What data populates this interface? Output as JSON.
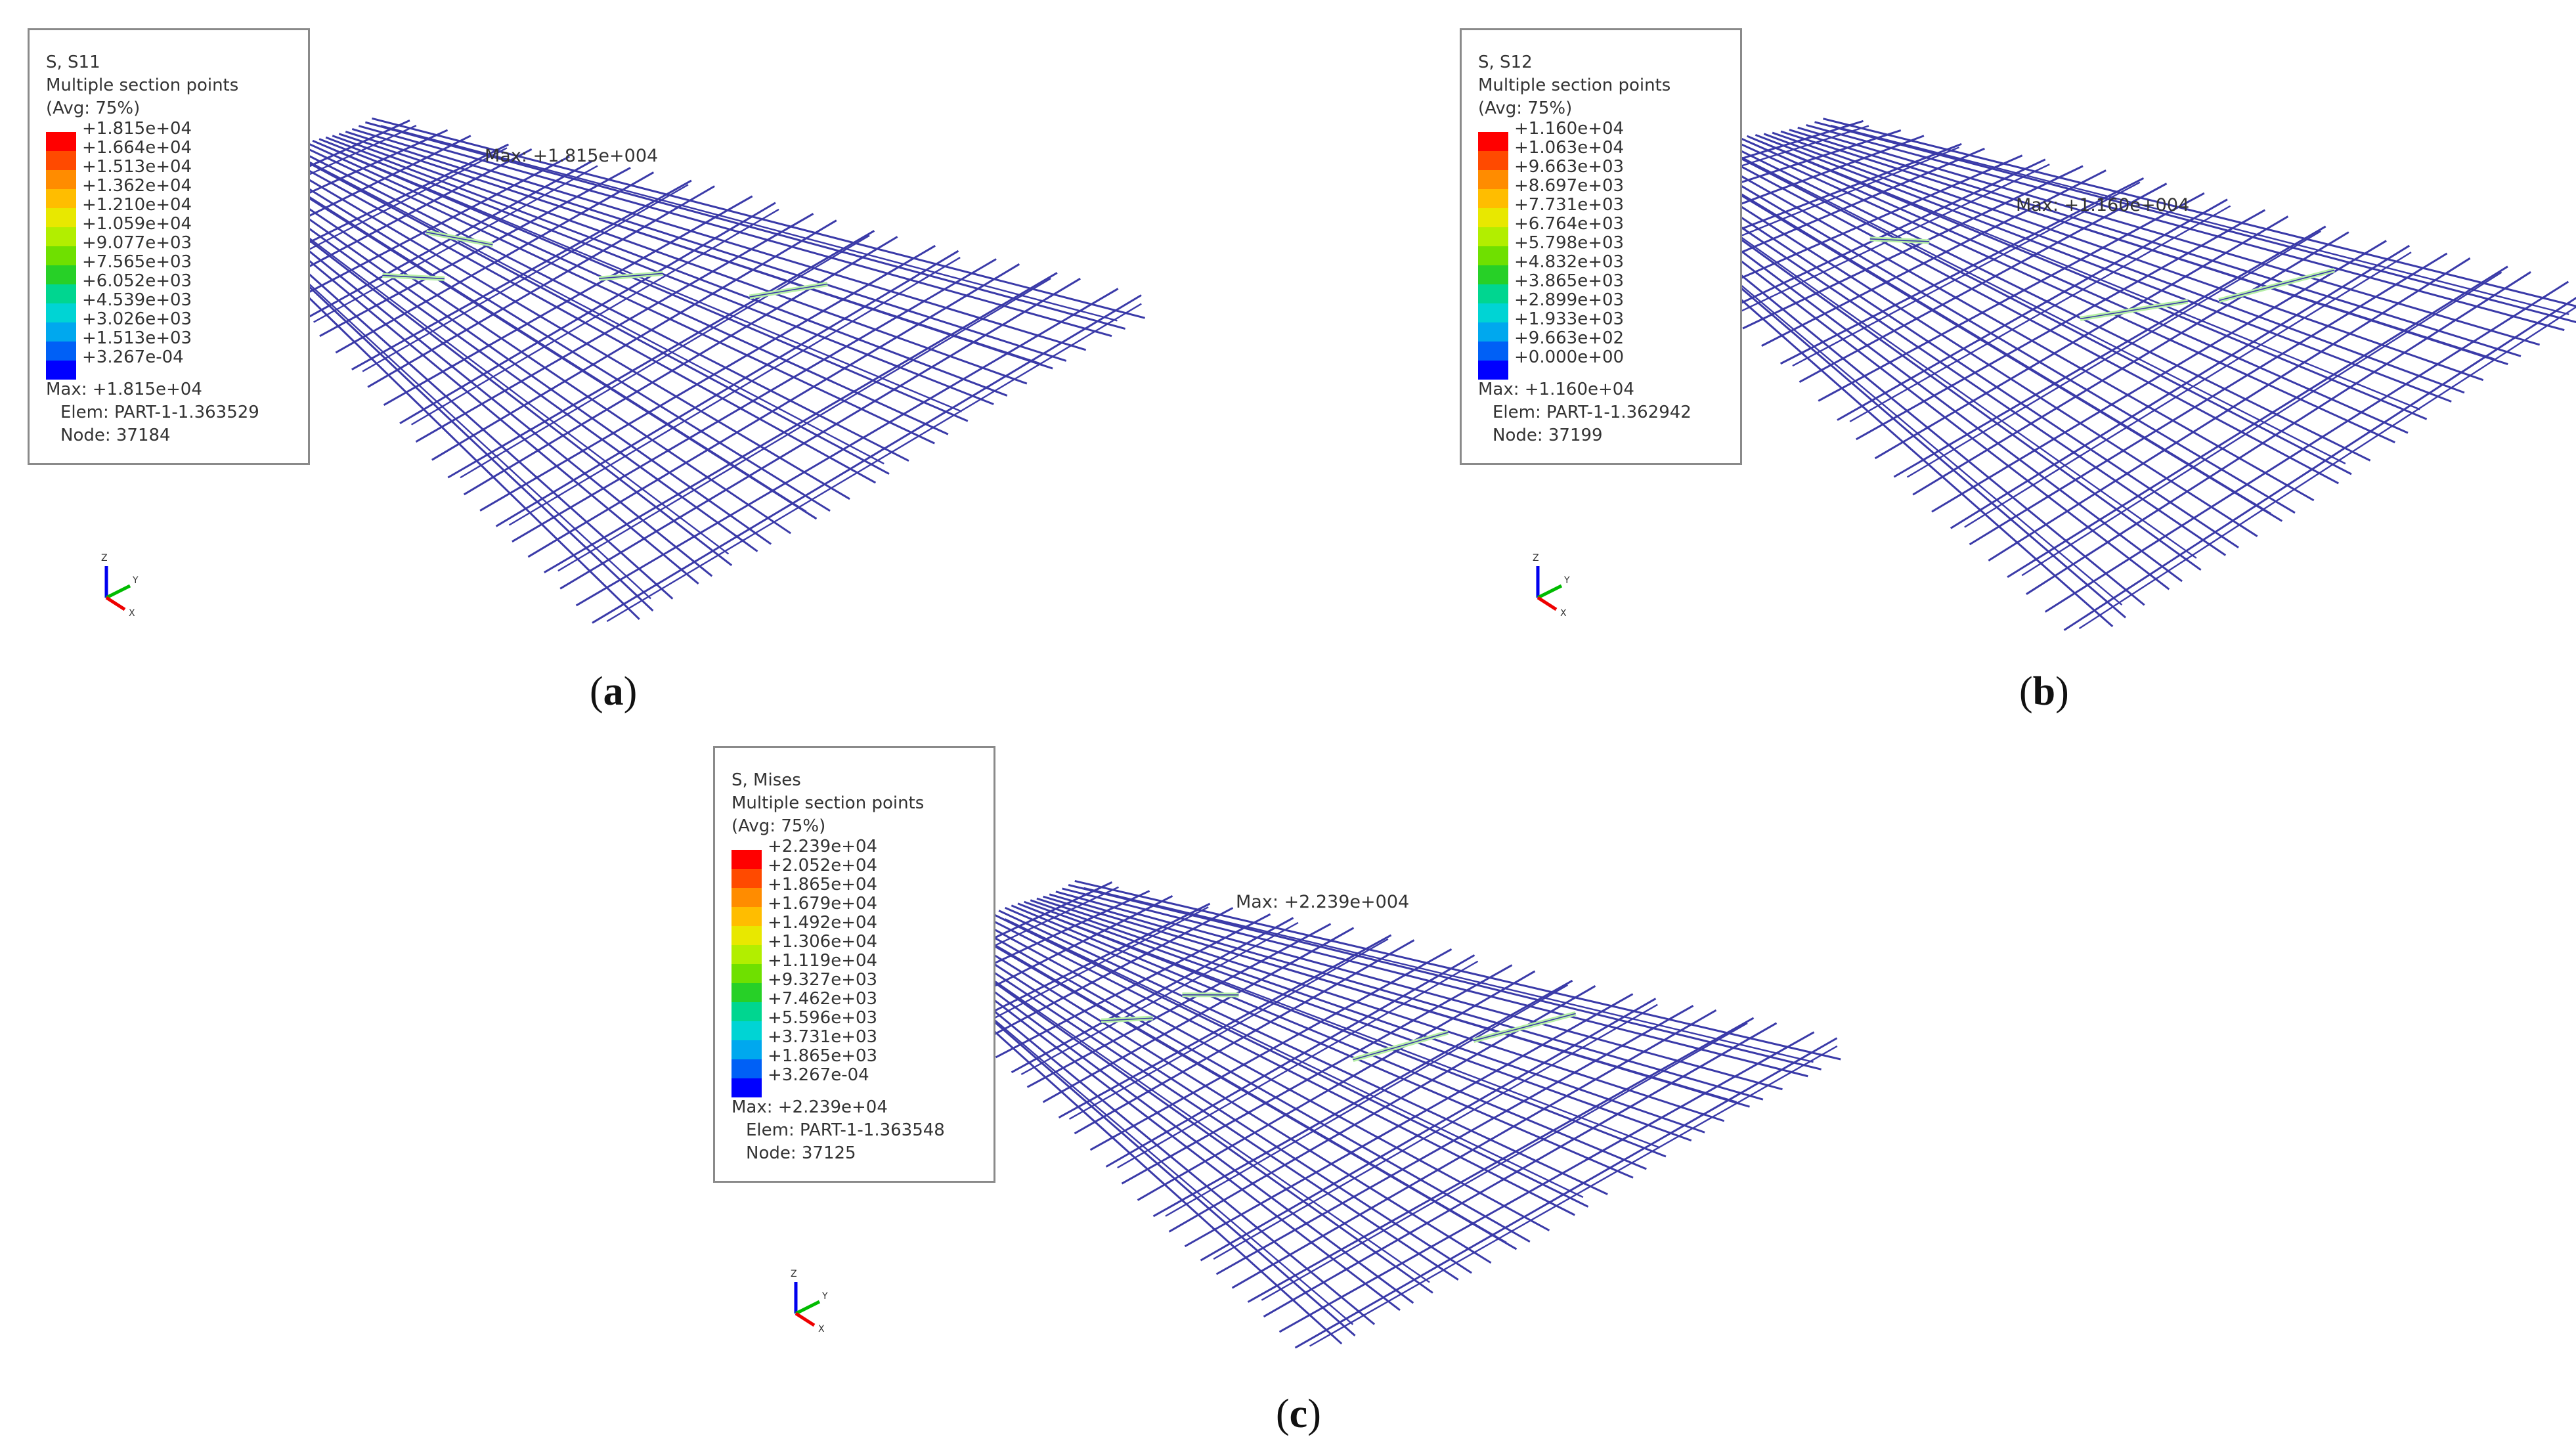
{
  "panels": [
    {
      "caption": "(a)",
      "caption_letter": "a",
      "legend": {
        "title": "S, S11",
        "subtitle": "Multiple section points",
        "avg": "(Avg: 75%)",
        "values": [
          "+1.815e+04",
          "+1.664e+04",
          "+1.513e+04",
          "+1.362e+04",
          "+1.210e+04",
          "+1.059e+04",
          "+9.077e+03",
          "+7.565e+03",
          "+6.052e+03",
          "+4.539e+03",
          "+3.026e+03",
          "+1.513e+03",
          "+3.267e-04"
        ],
        "max": "Max: +1.815e+04",
        "elem": "Elem: PART-1-1.363529",
        "node": "Node: 37184"
      },
      "max_label": "Max: +1.815e+004"
    },
    {
      "caption": "(b)",
      "caption_letter": "b",
      "legend": {
        "title": "S, S12",
        "subtitle": "Multiple section points",
        "avg": "(Avg: 75%)",
        "values": [
          "+1.160e+04",
          "+1.063e+04",
          "+9.663e+03",
          "+8.697e+03",
          "+7.731e+03",
          "+6.764e+03",
          "+5.798e+03",
          "+4.832e+03",
          "+3.865e+03",
          "+2.899e+03",
          "+1.933e+03",
          "+9.663e+02",
          "+0.000e+00"
        ],
        "max": "Max: +1.160e+04",
        "elem": "Elem: PART-1-1.362942",
        "node": "Node: 37199"
      },
      "max_label": "Max: +1.160e+004"
    },
    {
      "caption": "(c)",
      "caption_letter": "c",
      "legend": {
        "title": "S, Mises",
        "subtitle": "Multiple section points",
        "avg": "(Avg: 75%)",
        "values": [
          "+2.239e+04",
          "+2.052e+04",
          "+1.865e+04",
          "+1.679e+04",
          "+1.492e+04",
          "+1.306e+04",
          "+1.119e+04",
          "+9.327e+03",
          "+7.462e+03",
          "+5.596e+03",
          "+3.731e+03",
          "+1.865e+03",
          "+3.267e-04"
        ],
        "max": "Max: +2.239e+04",
        "elem": "Elem: PART-1-1.363548",
        "node": "Node: 37125"
      },
      "max_label": "Max: +2.239e+004"
    }
  ],
  "colorbar": [
    "#ff0000",
    "#ff4a00",
    "#ff8c00",
    "#ffbd00",
    "#e8e800",
    "#b2ee00",
    "#6fe000",
    "#27d027",
    "#00d690",
    "#00d4d4",
    "#00a8ee",
    "#0060f6",
    "#0000ff"
  ],
  "mesh_color": "#3a3aa8",
  "highlight_color": "#b6f0a6",
  "axis_labels": {
    "z": "Z",
    "y": "Y",
    "x": "X"
  },
  "axis_colors": {
    "z": "#0000ee",
    "y": "#00bb00",
    "x": "#ee0000"
  }
}
